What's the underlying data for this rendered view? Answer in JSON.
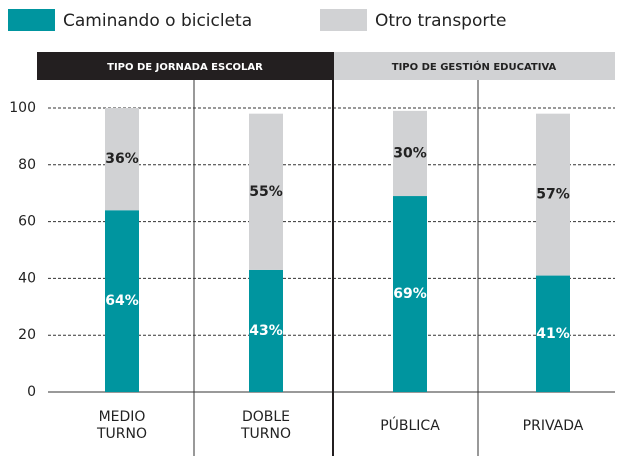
{
  "chart_data": {
    "type": "stacked_bar",
    "groups": [
      "TIPO DE JORNADA ESCOLAR",
      "TIPO DE GESTIÓN EDUCATIVA"
    ],
    "categories": [
      [
        "MEDIO",
        "TURNO"
      ],
      [
        "DOBLE",
        "TURNO"
      ],
      [
        "PÚBLICA"
      ],
      [
        "PRIVADA"
      ]
    ],
    "series": [
      {
        "name": "Caminando o bicicleta",
        "color": "#00959f",
        "values": [
          64,
          43,
          69,
          41
        ],
        "value_labels": [
          "64%",
          "43%",
          "69%",
          "41%"
        ]
      },
      {
        "name": "Otro transporte",
        "color": "#d1d2d4",
        "values": [
          36,
          55,
          30,
          57
        ],
        "value_labels": [
          "36%",
          "55%",
          "30%",
          "57%"
        ]
      }
    ],
    "ylim": [
      0,
      100
    ],
    "yticks": [
      0,
      20,
      40,
      60,
      80,
      100
    ],
    "grid": true
  }
}
